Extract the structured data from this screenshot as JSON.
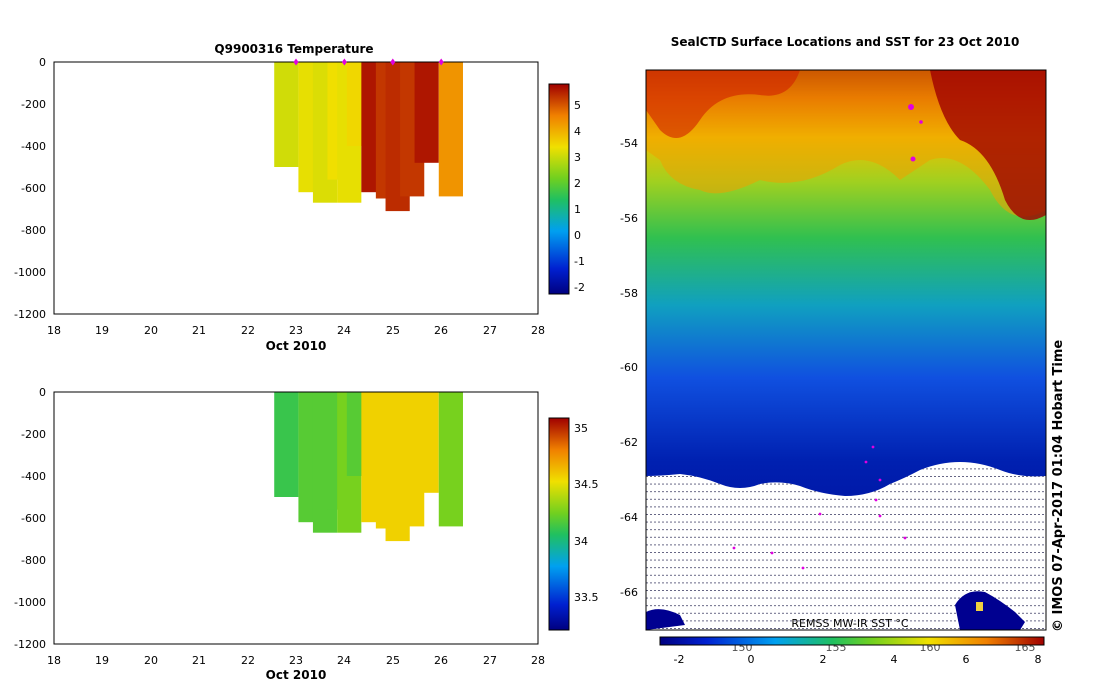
{
  "chart_data": [
    {
      "type": "heatmap",
      "title": "Q9900316  Temperature",
      "xlabel": "Oct 2010",
      "ylabel": "",
      "xlim": [
        18,
        28
      ],
      "ylim": [
        -1200,
        0
      ],
      "xticks": [
        "18",
        "19",
        "20",
        "21",
        "22",
        "23",
        "24",
        "25",
        "26",
        "27",
        "28"
      ],
      "yticks": [
        "0",
        "-200",
        "-400",
        "-600",
        "-800",
        "-1000",
        "-1200"
      ],
      "colorbar": {
        "min": -2.3,
        "max": 5.8,
        "ticks": [
          "5",
          "4",
          "3",
          "2",
          "1",
          "0",
          "-1",
          "-2"
        ]
      },
      "profiles": [
        {
          "day": 22.8,
          "bottom": -500,
          "value": 3.2
        },
        {
          "day": 23.3,
          "bottom": -620,
          "value": 3.4
        },
        {
          "day": 23.6,
          "bottom": -670,
          "value": 3.3
        },
        {
          "day": 23.9,
          "bottom": -560,
          "value": 3.5
        },
        {
          "day": 24.1,
          "bottom": -670,
          "value": 3.4
        },
        {
          "day": 24.3,
          "bottom": -400,
          "value": 3.6
        },
        {
          "day": 24.6,
          "bottom": -620,
          "value": 5.6
        },
        {
          "day": 24.9,
          "bottom": -650,
          "value": 5.3
        },
        {
          "day": 25.1,
          "bottom": -710,
          "value": 5.4
        },
        {
          "day": 25.4,
          "bottom": -640,
          "value": 5.3
        },
        {
          "day": 25.7,
          "bottom": -480,
          "value": 5.6
        },
        {
          "day": 26.2,
          "bottom": -640,
          "value": 4.4
        }
      ]
    },
    {
      "type": "heatmap",
      "title": "",
      "xlabel": "Oct 2010",
      "ylabel": "",
      "xlim": [
        18,
        28
      ],
      "ylim": [
        -1200,
        0
      ],
      "xticks": [
        "18",
        "19",
        "20",
        "21",
        "22",
        "23",
        "24",
        "25",
        "26",
        "27",
        "28"
      ],
      "yticks": [
        "0",
        "-200",
        "-400",
        "-600",
        "-800",
        "-1000",
        "-1200"
      ],
      "colorbar": {
        "min": 33.2,
        "max": 35.1,
        "ticks": [
          "35",
          "34.5",
          "34",
          "33.5"
        ]
      },
      "profiles": [
        {
          "day": 22.8,
          "bottom": -500,
          "value": 34.1
        },
        {
          "day": 23.3,
          "bottom": -620,
          "value": 34.2
        },
        {
          "day": 23.6,
          "bottom": -670,
          "value": 34.2
        },
        {
          "day": 23.9,
          "bottom": -560,
          "value": 34.2
        },
        {
          "day": 24.1,
          "bottom": -670,
          "value": 34.3
        },
        {
          "day": 24.3,
          "bottom": -400,
          "value": 34.2
        },
        {
          "day": 24.6,
          "bottom": -620,
          "value": 34.6
        },
        {
          "day": 24.9,
          "bottom": -650,
          "value": 34.6
        },
        {
          "day": 25.1,
          "bottom": -710,
          "value": 34.6
        },
        {
          "day": 25.4,
          "bottom": -640,
          "value": 34.6
        },
        {
          "day": 25.7,
          "bottom": -480,
          "value": 34.6
        },
        {
          "day": 26.2,
          "bottom": -640,
          "value": 34.3
        }
      ]
    },
    {
      "type": "heatmap",
      "title": "SealCTD Surface Locations and SST for 23 Oct 2010",
      "ylim": [
        -67,
        -52.3
      ],
      "yticks": [
        "-54",
        "-56",
        "-58",
        "-60",
        "-62",
        "-64",
        "-66"
      ],
      "colorbar": {
        "label": "REMSS MW-IR SST °C",
        "min": -3,
        "max": 8,
        "ticks": [
          "-2",
          "0",
          "2",
          "4",
          "6",
          "8"
        ]
      },
      "lon_ticks": [
        "150",
        "155",
        "160",
        "165"
      ]
    }
  ],
  "map": {
    "side_label": "© IMOS 07-Apr-2017 01:04 Hobart Time"
  }
}
